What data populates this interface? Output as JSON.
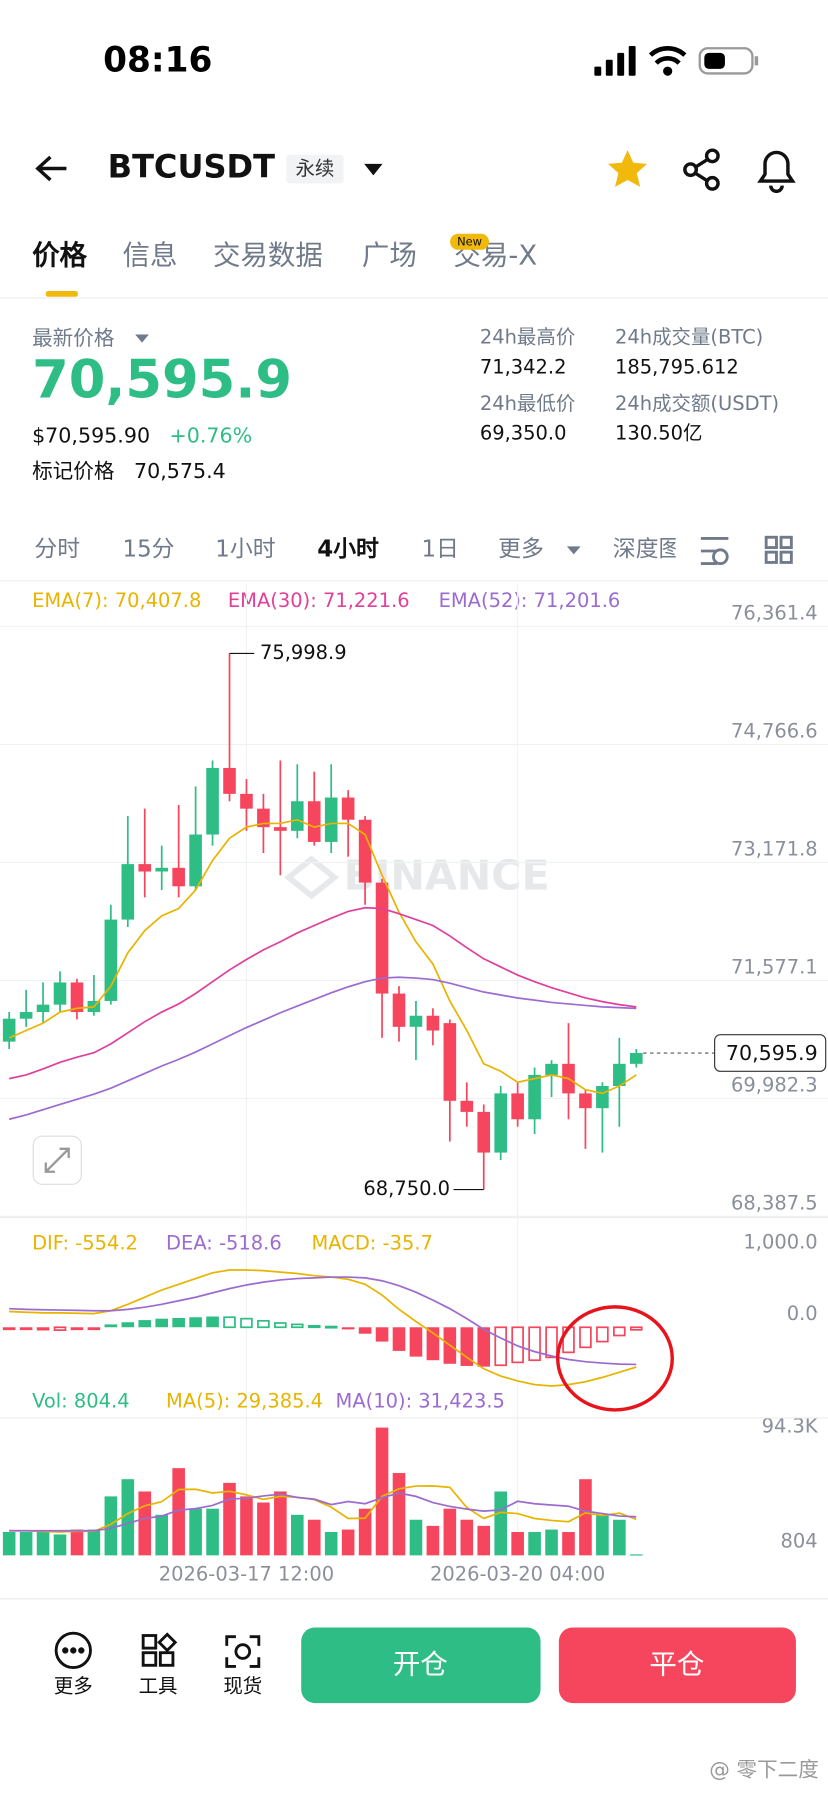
{
  "status_bar": {
    "time": "08:16"
  },
  "header": {
    "symbol": "BTCUSDT",
    "tag": "永续"
  },
  "tabs": [
    "价格",
    "信息",
    "交易数据",
    "广场",
    "交易-X"
  ],
  "new_badge": "New",
  "price": {
    "label": "最新价格",
    "last": "70,595.9",
    "usd": "$70,595.90",
    "change": "+0.76%",
    "mark_label": "标记价格",
    "mark": "70,575.4"
  },
  "stats": [
    {
      "label": "24h最高价",
      "value": "71,342.2"
    },
    {
      "label": "24h成交量(BTC)",
      "value": "185,795.612"
    },
    {
      "label": "24h最低价",
      "value": "69,350.0"
    },
    {
      "label": "24h成交额(USDT)",
      "value": "130.50亿"
    }
  ],
  "intervals": [
    "分时",
    "15分",
    "1小时",
    "4小时",
    "1日",
    "更多",
    "深度图"
  ],
  "watermark": "BINANCE",
  "footer": {
    "buttons": [
      "更多",
      "工具",
      "现货"
    ],
    "open": "开仓",
    "close": "平仓",
    "credit": "@ 零下二度"
  },
  "chart_data": [
    {
      "type": "candlestick",
      "categories": [
        null,
        null,
        null,
        null,
        null,
        null,
        null,
        null,
        null,
        null,
        null,
        null,
        null,
        null,
        "2026-03-17 12:00",
        null,
        null,
        null,
        null,
        null,
        null,
        null,
        null,
        null,
        null,
        null,
        null,
        null,
        null,
        null,
        "2026-03-20 04:00",
        null,
        null,
        null,
        null,
        null,
        null,
        null
      ],
      "open": [
        70750,
        71060,
        71150,
        71250,
        71550,
        71150,
        71300,
        72400,
        73150,
        73050,
        73100,
        72850,
        73550,
        74450,
        74100,
        73900,
        73650,
        73600,
        74000,
        73450,
        74050,
        73750,
        72900,
        71400,
        70950,
        71100,
        71000,
        69950,
        69800,
        69250,
        70050,
        69700,
        70300,
        70450,
        70050,
        69850,
        70150,
        70450
      ],
      "high": [
        71150,
        71450,
        71550,
        71700,
        71600,
        71650,
        72600,
        73800,
        73900,
        73400,
        73950,
        74200,
        74550,
        75998.9,
        74300,
        74100,
        74550,
        74500,
        74400,
        74500,
        74150,
        73800,
        72950,
        71500,
        71300,
        71200,
        71050,
        70200,
        69900,
        70150,
        70200,
        70400,
        70500,
        71000,
        70100,
        70200,
        70800,
        70650
      ],
      "low": [
        70650,
        70950,
        71000,
        71150,
        71050,
        71100,
        71250,
        72300,
        72700,
        72800,
        72700,
        72800,
        73400,
        74000,
        73600,
        73300,
        73000,
        73500,
        73400,
        73300,
        73250,
        72600,
        70800,
        70750,
        70500,
        70700,
        69400,
        69600,
        68750,
        69150,
        69600,
        69500,
        70000,
        69700,
        69300,
        69250,
        69600,
        70400
      ],
      "close": [
        71060,
        71150,
        71250,
        71550,
        71150,
        71300,
        72400,
        73150,
        73050,
        73100,
        72850,
        73550,
        74450,
        74100,
        73900,
        73650,
        73600,
        74000,
        73450,
        74050,
        73750,
        72900,
        71400,
        70950,
        71100,
        70900,
        69950,
        69800,
        69250,
        70050,
        69700,
        70300,
        70450,
        70050,
        69850,
        70150,
        70450,
        70595.9
      ],
      "up_color": "#2ebd85",
      "down_color": "#f6465d",
      "ylim": [
        68387.5,
        76361.4
      ],
      "yticks": [
        {
          "value": 76361.4,
          "label": "76,361.4"
        },
        {
          "value": 74766.6,
          "label": "74,766.6"
        },
        {
          "value": 73171.8,
          "label": "73,171.8"
        },
        {
          "value": 71577.1,
          "label": "71,577.1"
        },
        {
          "value": 69982.3,
          "label": "69,982.3"
        },
        {
          "value": 68387.5,
          "label": "68,387.5"
        }
      ],
      "grid": true,
      "high_label": "75,998.9",
      "low_label": "68,750.0",
      "last_label": "70,595.9",
      "series": [
        {
          "name": "EMA(7): 70,407.8",
          "color": "#e8b400",
          "values": [
            70800,
            70900,
            71000,
            71150,
            71200,
            71220,
            71500,
            71950,
            72250,
            72450,
            72550,
            72800,
            73200,
            73500,
            73650,
            73700,
            73700,
            73750,
            73650,
            73700,
            73700,
            73550,
            73000,
            72500,
            72100,
            71800,
            71300,
            70900,
            70450,
            70350,
            70200,
            70250,
            70300,
            70250,
            70100,
            70050,
            70150,
            70300
          ]
        },
        {
          "name": "EMA(30): 71,221.6",
          "color": "#e0409c",
          "values": [
            70250,
            70300,
            70380,
            70470,
            70540,
            70600,
            70720,
            70870,
            71020,
            71150,
            71260,
            71400,
            71560,
            71720,
            71860,
            71990,
            72100,
            72220,
            72320,
            72420,
            72510,
            72560,
            72550,
            72480,
            72400,
            72320,
            72180,
            72020,
            71870,
            71760,
            71650,
            71560,
            71480,
            71410,
            71340,
            71290,
            71250,
            71220
          ]
        },
        {
          "name": "EMA(52): 71,201.6",
          "color": "#9b6bd0",
          "values": [
            69700,
            69760,
            69830,
            69900,
            69970,
            70040,
            70120,
            70220,
            70320,
            70420,
            70510,
            70610,
            70720,
            70830,
            70940,
            71040,
            71140,
            71230,
            71320,
            71410,
            71490,
            71560,
            71610,
            71620,
            71610,
            71590,
            71540,
            71480,
            71420,
            71380,
            71340,
            71310,
            71280,
            71260,
            71240,
            71220,
            71210,
            71200
          ]
        }
      ]
    },
    {
      "type": "bar",
      "ylim": [
        -850,
        1500
      ],
      "yticks": [
        {
          "value": 1000,
          "label": "1,000.0"
        },
        {
          "value": 0,
          "label": "0.0"
        }
      ],
      "up_color": "#2ebd85",
      "down_color": "#f6465d",
      "series": [
        {
          "name": "DIF: -554.2",
          "kind": "line",
          "color": "#e8b400",
          "values": [
            220,
            210,
            200,
            200,
            195,
            190,
            230,
            320,
            420,
            520,
            600,
            680,
            760,
            800,
            800,
            790,
            770,
            750,
            720,
            700,
            670,
            600,
            450,
            250,
            80,
            -80,
            -250,
            -420,
            -580,
            -680,
            -750,
            -800,
            -820,
            -800,
            -760,
            -700,
            -630,
            -554.2
          ]
        },
        {
          "name": "DEA: -518.6",
          "kind": "line",
          "color": "#9b6bd0",
          "values": [
            260,
            250,
            245,
            240,
            235,
            230,
            230,
            250,
            280,
            320,
            370,
            420,
            480,
            540,
            590,
            630,
            660,
            680,
            690,
            700,
            700,
            690,
            650,
            580,
            490,
            380,
            260,
            120,
            -30,
            -150,
            -260,
            -340,
            -400,
            -450,
            -480,
            -500,
            -515,
            -518.6
          ]
        },
        {
          "name": "MACD: -35.7",
          "kind": "bar",
          "color": "#e8b400",
          "values": [
            -40,
            -40,
            -45,
            -40,
            -40,
            -40,
            40,
            70,
            100,
            120,
            130,
            140,
            150,
            140,
            120,
            90,
            60,
            40,
            20,
            10,
            -30,
            -90,
            -200,
            -330,
            -410,
            -460,
            -510,
            -540,
            -550,
            -530,
            -490,
            -460,
            -420,
            -350,
            -280,
            -200,
            -115,
            -35.7
          ]
        }
      ]
    },
    {
      "type": "bar",
      "ylim": [
        0,
        110000
      ],
      "yticks": [
        {
          "value": 94300,
          "label": "94.3K"
        },
        804
      ],
      "up_color": "#2ebd85",
      "down_color": "#f6465d",
      "series": [
        {
          "name": "Vol: 804.4",
          "kind": "bar",
          "color": "#2ebd85",
          "values": [
            19000,
            19000,
            19000,
            17000,
            21000,
            21000,
            48000,
            62000,
            52000,
            33000,
            71000,
            38000,
            38000,
            59000,
            48000,
            43000,
            52000,
            33000,
            29000,
            19000,
            21000,
            38000,
            104000,
            67000,
            29000,
            24000,
            38000,
            29000,
            24000,
            52000,
            19000,
            19000,
            21000,
            19000,
            62000,
            33000,
            29000,
            804.4
          ]
        },
        {
          "name": "MA(5): 29,385.4",
          "kind": "line",
          "color": "#e8b400",
          "values": [
            20000,
            20000,
            19500,
            19000,
            19600,
            19600,
            25400,
            34000,
            40400,
            43600,
            53600,
            53800,
            50800,
            52200,
            49200,
            45600,
            48000,
            47400,
            45400,
            39200,
            30000,
            30200,
            48000,
            54200,
            56400,
            56600,
            55400,
            39000,
            30000,
            35000,
            34000,
            30000,
            28400,
            27400,
            34600,
            32400,
            34400,
            29385.4
          ]
        },
        {
          "name": "MA(10): 31,423.5",
          "kind": "line",
          "color": "#9b6bd0",
          "values": [
            20000,
            20000,
            20000,
            20000,
            20000,
            20000,
            22000,
            26000,
            30000,
            32000,
            36800,
            38000,
            40600,
            45900,
            46400,
            48400,
            49900,
            47100,
            45800,
            41300,
            43800,
            42000,
            47000,
            50700,
            48000,
            43000,
            39800,
            37700,
            36000,
            37000,
            44000,
            42000,
            41000,
            40000,
            36000,
            34000,
            32000,
            31423.5
          ]
        }
      ]
    }
  ]
}
